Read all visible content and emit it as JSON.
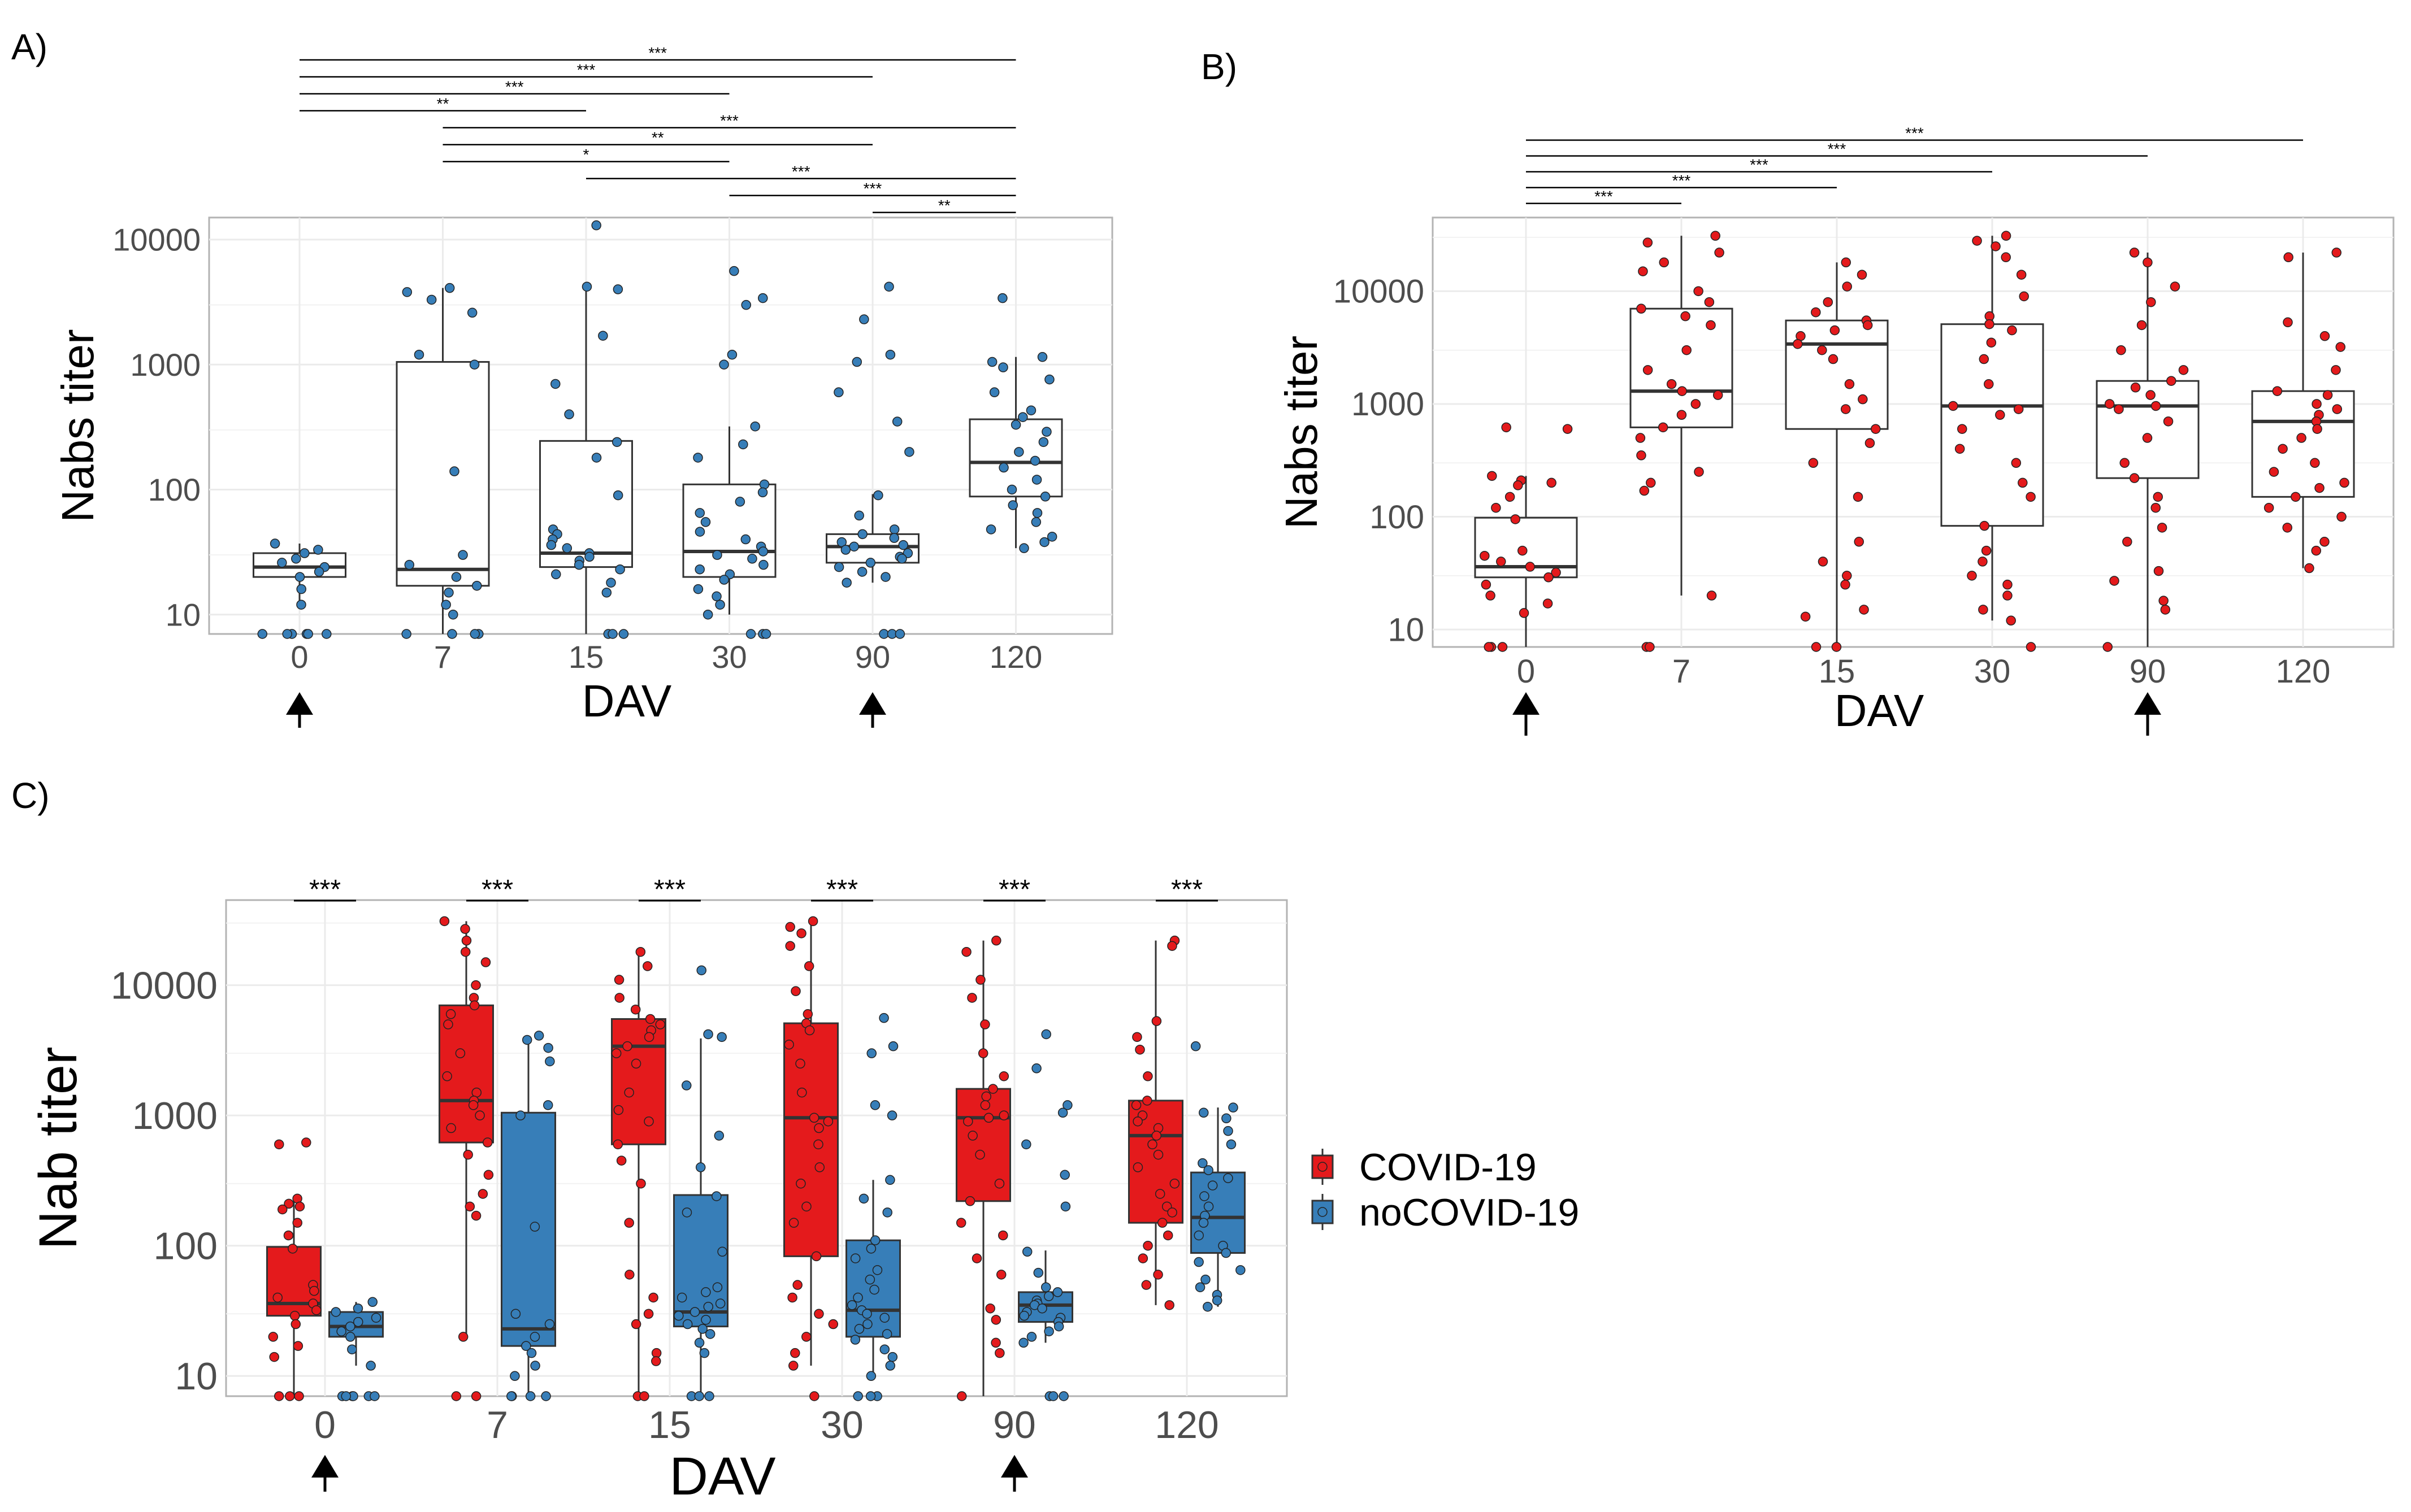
{
  "figure": {
    "letters": [
      "A)",
      "B)",
      "C)"
    ]
  },
  "colors": {
    "covid": "#e41a1c",
    "nocovid": "#377eb8",
    "box_open": "#ffffff",
    "grid": "#ebebeb",
    "panel_border": "#b3b3b3"
  },
  "icons": [
    "up-arrow-icon",
    "legend-key-icon"
  ],
  "chart_data": [
    {
      "panel": "A)",
      "type": "box",
      "xlabel": "DAV",
      "ylabel": "Nabs titer",
      "ylim": [
        7,
        15000
      ],
      "yscale": "log",
      "yticks": [
        "10",
        "100",
        "1000",
        "10000"
      ],
      "categories": [
        "0",
        "7",
        "15",
        "30",
        "90",
        "120"
      ],
      "boxes": [
        {
          "q1": 20,
          "median": 24,
          "q3": 31,
          "wlo": 12,
          "whi": 37,
          "pts": [
            37,
            33,
            31,
            28,
            26,
            24,
            22,
            20,
            16,
            12,
            7,
            7,
            7,
            7,
            7,
            7
          ]
        },
        {
          "q1": 17,
          "median": 23,
          "q3": 1050,
          "wlo": 7,
          "whi": 4100,
          "pts": [
            4100,
            3800,
            3300,
            2600,
            1200,
            1000,
            140,
            30,
            25,
            20,
            17,
            15,
            12,
            10,
            7,
            7,
            7,
            7
          ]
        },
        {
          "q1": 24,
          "median": 31,
          "q3": 245,
          "wlo": 7,
          "whi": 3900,
          "pts": [
            13000,
            4200,
            4000,
            1700,
            700,
            400,
            240,
            180,
            90,
            48,
            44,
            40,
            36,
            34,
            31,
            29,
            27,
            25,
            23,
            21,
            18,
            15,
            7,
            7,
            7
          ]
        },
        {
          "q1": 20,
          "median": 32,
          "q3": 110,
          "wlo": 10,
          "whi": 320,
          "pts": [
            5600,
            3400,
            3000,
            1200,
            1000,
            320,
            230,
            180,
            110,
            95,
            80,
            65,
            55,
            46,
            40,
            35,
            32,
            30,
            28,
            25,
            23,
            21,
            19,
            16,
            14,
            12,
            10,
            7,
            7,
            7
          ]
        },
        {
          "q1": 26,
          "median": 35,
          "q3": 44,
          "wlo": 18,
          "whi": 92,
          "pts": [
            4200,
            2300,
            1200,
            1050,
            600,
            350,
            200,
            90,
            62,
            48,
            44,
            41,
            38,
            36,
            35,
            33,
            31,
            29,
            28,
            26,
            24,
            22,
            20,
            18,
            7,
            7,
            7
          ]
        },
        {
          "q1": 88,
          "median": 165,
          "q3": 365,
          "wlo": 34,
          "whi": 1150,
          "pts": [
            3400,
            1150,
            1050,
            950,
            760,
            600,
            430,
            380,
            330,
            290,
            240,
            200,
            170,
            150,
            120,
            100,
            88,
            75,
            65,
            55,
            48,
            42,
            38,
            34
          ]
        }
      ],
      "arrows_at": [
        "0",
        "90"
      ],
      "sig": [
        {
          "from": "0",
          "to": "120",
          "label": "***"
        },
        {
          "from": "0",
          "to": "90",
          "label": "***"
        },
        {
          "from": "0",
          "to": "30",
          "label": "***"
        },
        {
          "from": "0",
          "to": "15",
          "label": "**"
        },
        {
          "from": "7",
          "to": "120",
          "label": "***"
        },
        {
          "from": "7",
          "to": "90",
          "label": "**"
        },
        {
          "from": "7",
          "to": "30",
          "label": "*"
        },
        {
          "from": "15",
          "to": "120",
          "label": "***"
        },
        {
          "from": "30",
          "to": "120",
          "label": "***"
        },
        {
          "from": "90",
          "to": "120",
          "label": "**"
        }
      ]
    },
    {
      "panel": "B)",
      "type": "box",
      "xlabel": "DAV",
      "ylabel": "Nabs titer",
      "ylim": [
        7,
        45000
      ],
      "yscale": "log",
      "yticks": [
        "10",
        "100",
        "1000",
        "10000"
      ],
      "categories": [
        "0",
        "7",
        "15",
        "30",
        "90",
        "120"
      ],
      "boxes": [
        {
          "q1": 29,
          "median": 36,
          "q3": 98,
          "wlo": 7,
          "whi": 230,
          "pts": [
            620,
            600,
            230,
            210,
            200,
            190,
            150,
            120,
            95,
            50,
            45,
            40,
            36,
            32,
            29,
            25,
            20,
            17,
            14,
            7,
            7,
            7
          ]
        },
        {
          "q1": 620,
          "median": 1300,
          "q3": 7000,
          "wlo": 20,
          "whi": 31000,
          "pts": [
            31000,
            27000,
            22000,
            18000,
            15000,
            10000,
            8000,
            7000,
            6000,
            5000,
            3000,
            2000,
            1500,
            1300,
            1200,
            1000,
            800,
            620,
            500,
            350,
            250,
            200,
            170,
            20,
            7,
            7
          ]
        },
        {
          "q1": 600,
          "median": 3400,
          "q3": 5500,
          "wlo": 7,
          "whi": 18000,
          "pts": [
            18000,
            14000,
            11000,
            8000,
            6500,
            5500,
            5000,
            4500,
            4000,
            3400,
            3000,
            2500,
            1500,
            1100,
            900,
            600,
            450,
            300,
            150,
            60,
            40,
            30,
            25,
            15,
            13,
            7,
            7
          ]
        },
        {
          "q1": 83,
          "median": 960,
          "q3": 5100,
          "wlo": 12,
          "whi": 31000,
          "pts": [
            31000,
            28000,
            25000,
            20000,
            14000,
            9000,
            6000,
            5100,
            4500,
            3500,
            2500,
            1500,
            960,
            900,
            800,
            600,
            400,
            300,
            200,
            150,
            83,
            50,
            40,
            30,
            25,
            20,
            15,
            12,
            7
          ]
        },
        {
          "q1": 220,
          "median": 960,
          "q3": 1600,
          "wlo": 7,
          "whi": 22000,
          "pts": [
            22000,
            18000,
            11000,
            8000,
            5000,
            3000,
            2000,
            1600,
            1400,
            1200,
            1000,
            960,
            900,
            700,
            500,
            300,
            220,
            150,
            120,
            80,
            60,
            33,
            27,
            18,
            15,
            7
          ]
        },
        {
          "q1": 150,
          "median": 700,
          "q3": 1300,
          "wlo": 35,
          "whi": 22000,
          "pts": [
            22000,
            20000,
            5300,
            4000,
            3200,
            2000,
            1300,
            1200,
            1000,
            900,
            800,
            700,
            600,
            500,
            400,
            300,
            250,
            200,
            180,
            150,
            120,
            100,
            80,
            60,
            50,
            35
          ]
        }
      ],
      "arrows_at": [
        "0",
        "90"
      ],
      "sig": [
        {
          "from": "0",
          "to": "120",
          "label": "***"
        },
        {
          "from": "0",
          "to": "90",
          "label": "***"
        },
        {
          "from": "0",
          "to": "30",
          "label": "***"
        },
        {
          "from": "0",
          "to": "15",
          "label": "***"
        },
        {
          "from": "0",
          "to": "7",
          "label": "***"
        }
      ]
    },
    {
      "panel": "C)",
      "type": "grouped-box",
      "xlabel": "DAV",
      "ylabel": "Nab titer",
      "ylim": [
        7,
        45000
      ],
      "yscale": "log",
      "yticks": [
        "10",
        "100",
        "1000",
        "10000"
      ],
      "categories": [
        "0",
        "7",
        "15",
        "30",
        "90",
        "120"
      ],
      "legend": {
        "position": "right",
        "items": [
          "COVID-19",
          "noCOVID-19"
        ]
      },
      "series": [
        {
          "name": "COVID-19",
          "color": "#e41a1c",
          "boxes": "B)"
        },
        {
          "name": "noCOVID-19",
          "color": "#377eb8",
          "boxes": "A)"
        }
      ],
      "arrows_at": [
        "0",
        "90"
      ],
      "sig_label": "***"
    }
  ]
}
